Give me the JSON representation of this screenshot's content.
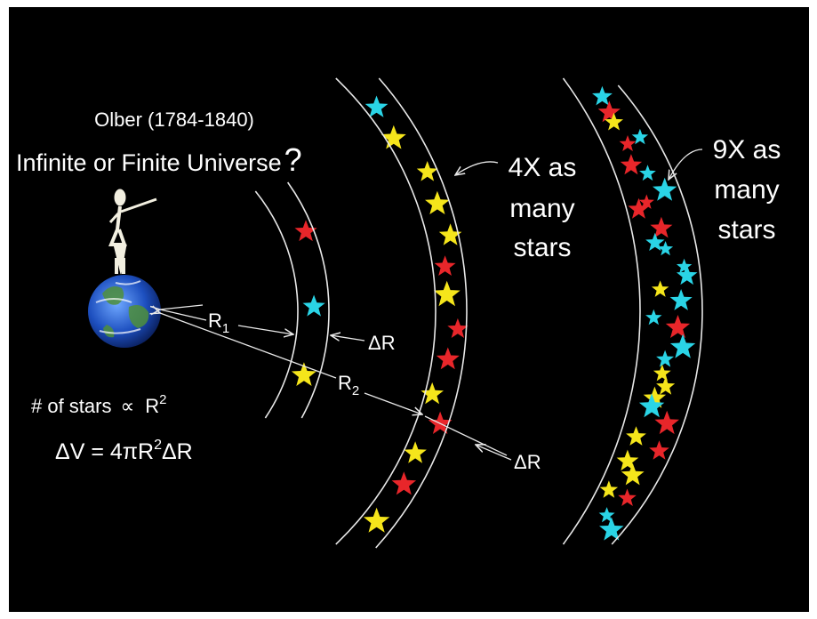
{
  "title": "Olber (1784-1840)",
  "question": {
    "text": "Infinite or Finite Universe",
    "mark": "?"
  },
  "shell_labels": [
    [
      "4X as",
      "many",
      "stars"
    ],
    [
      "9X as",
      "many",
      "stars"
    ]
  ],
  "labels": {
    "r1": {
      "base": "R",
      "sub": "1"
    },
    "dr1": "ΔR",
    "r2": {
      "base": "R",
      "sub": "2"
    },
    "dr2": "ΔR"
  },
  "formulas": {
    "count": {
      "text": "# of stars",
      "rel": "∝",
      "base": "R",
      "sup": "2"
    },
    "volume": {
      "lhs": "ΔV = 4πR",
      "sup": "2",
      "rhs": "ΔR"
    }
  }
}
